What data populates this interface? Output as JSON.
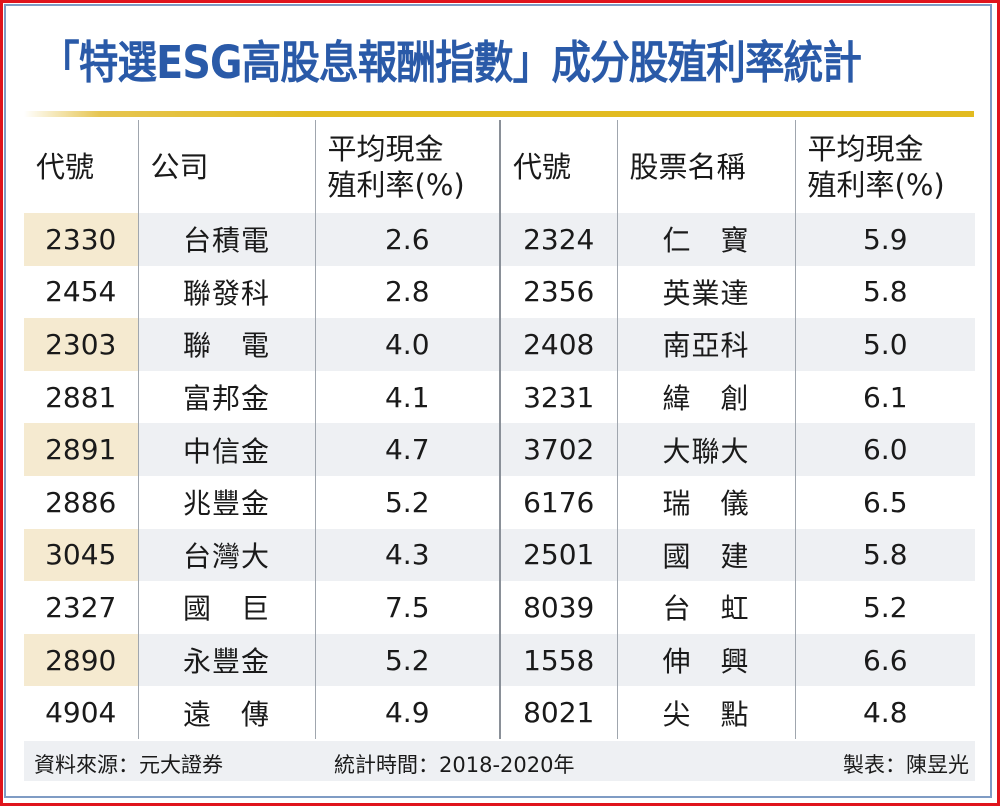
{
  "title": "「特選ESG高股息報酬指數」成分股殖利率統計",
  "headers": {
    "left": [
      "代號",
      "公司",
      "平均現金\n殖利率(%)"
    ],
    "right": [
      "代號",
      "股票名稱",
      "平均現金\n殖利率(%)"
    ]
  },
  "rows": [
    {
      "code1": "2330",
      "name1": "台積電",
      "yield1": "2.6",
      "code2": "2324",
      "name2": "仁　寶",
      "yield2": "5.9"
    },
    {
      "code1": "2454",
      "name1": "聯發科",
      "yield1": "2.8",
      "code2": "2356",
      "name2": "英業達",
      "yield2": "5.8"
    },
    {
      "code1": "2303",
      "name1": "聯　電",
      "yield1": "4.0",
      "code2": "2408",
      "name2": "南亞科",
      "yield2": "5.0"
    },
    {
      "code1": "2881",
      "name1": "富邦金",
      "yield1": "4.1",
      "code2": "3231",
      "name2": "緯　創",
      "yield2": "6.1"
    },
    {
      "code1": "2891",
      "name1": "中信金",
      "yield1": "4.7",
      "code2": "3702",
      "name2": "大聯大",
      "yield2": "6.0"
    },
    {
      "code1": "2886",
      "name1": "兆豐金",
      "yield1": "5.2",
      "code2": "6176",
      "name2": "瑞　儀",
      "yield2": "6.5"
    },
    {
      "code1": "3045",
      "name1": "台灣大",
      "yield1": "4.3",
      "code2": "2501",
      "name2": "國　建",
      "yield2": "5.8"
    },
    {
      "code1": "2327",
      "name1": "國　巨",
      "yield1": "7.5",
      "code2": "8039",
      "name2": "台　虹",
      "yield2": "5.2"
    },
    {
      "code1": "2890",
      "name1": "永豐金",
      "yield1": "5.2",
      "code2": "1558",
      "name2": "伸　興",
      "yield2": "6.6"
    },
    {
      "code1": "4904",
      "name1": "遠　傳",
      "yield1": "4.9",
      "code2": "8021",
      "name2": "尖　點",
      "yield2": "4.8"
    }
  ],
  "footer": {
    "source": "資料來源：元大證券",
    "period": "統計時間：2018-2020年",
    "credit": "製表：陳昱光"
  },
  "colors": {
    "title": "#2a5aa8",
    "border": "#e0141c",
    "gold": "#e2bb20"
  }
}
